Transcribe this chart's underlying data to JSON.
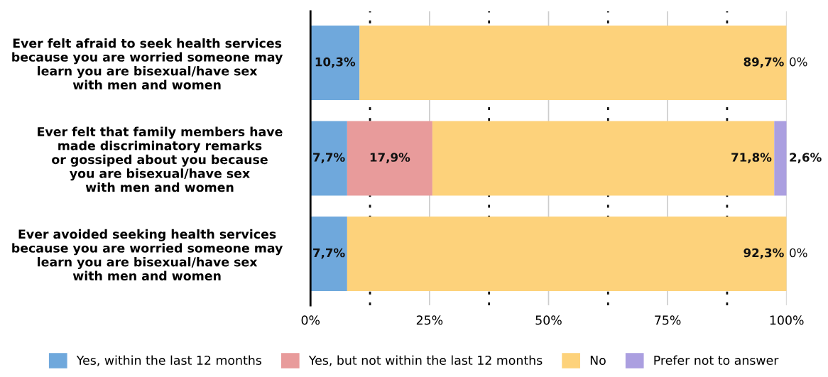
{
  "chart_data": {
    "type": "bar",
    "orientation": "horizontal",
    "stacked": true,
    "categories": [
      "Ever felt afraid to seek health services\nbecause you are worried someone may\nlearn you are bisexual/have sex\nwith men and women",
      "Ever felt that family members have\nmade discriminatory remarks\nor gossiped about you because\nyou are bisexual/have sex\nwith men and women",
      "Ever avoided seeking health services\nbecause you are worried someone may\nlearn you are bisexual/have sex\nwith men and women"
    ],
    "series": [
      {
        "name": "Yes, within the last 12 months",
        "color": "#6fa8dc",
        "values": [
          10.3,
          7.7,
          7.7
        ],
        "value_labels": [
          "10,3%",
          "7,7%",
          "7,7%"
        ]
      },
      {
        "name": "Yes, but not within the last 12 months",
        "color": "#e89b9b",
        "values": [
          0,
          17.9,
          0
        ],
        "value_labels": [
          null,
          "17,9%",
          null
        ]
      },
      {
        "name": "No",
        "color": "#fdd27b",
        "values": [
          89.7,
          71.8,
          92.3
        ],
        "value_labels": [
          "89,7%",
          "71,8%",
          "92,3%"
        ]
      },
      {
        "name": "Prefer not to answer",
        "color": "#ab9fe0",
        "values": [
          0,
          2.6,
          0
        ],
        "value_labels": [
          "0%",
          "2,6%",
          "0%"
        ]
      }
    ],
    "xlim": [
      0,
      100
    ],
    "xticks": [
      {
        "value": 0,
        "label": "0%"
      },
      {
        "value": 12.5,
        "label": null
      },
      {
        "value": 25,
        "label": "25%"
      },
      {
        "value": 37.5,
        "label": null
      },
      {
        "value": 50,
        "label": "50%"
      },
      {
        "value": 62.5,
        "label": null
      },
      {
        "value": 75,
        "label": "75%"
      },
      {
        "value": 87.5,
        "label": null
      },
      {
        "value": 100,
        "label": "100%"
      }
    ],
    "grid": "x",
    "legend": "bottom"
  }
}
